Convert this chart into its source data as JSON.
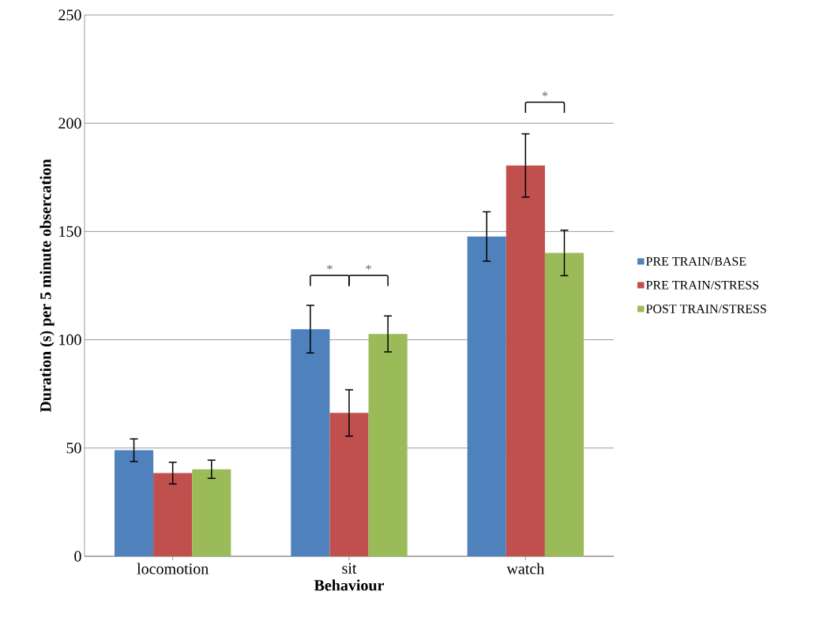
{
  "chart_data": {
    "type": "bar",
    "xlabel": "Behaviour",
    "ylabel": "Duration (s) per 5 minute obsercation",
    "categories": [
      "locomotion",
      "sit",
      "watch"
    ],
    "series": [
      {
        "name": "PRE TRAIN/BASE",
        "color": "#4f81bd",
        "values": [
          49.0,
          104.9,
          147.7
        ],
        "errors": [
          5.2,
          11,
          11.4
        ]
      },
      {
        "name": "PRE TRAIN/STRESS",
        "color": "#c0504d",
        "values": [
          38.4,
          66.2,
          180.5
        ],
        "errors": [
          5,
          10.7,
          14.6
        ]
      },
      {
        "name": "POST TRAIN/STRESS",
        "color": "#9bbb59",
        "values": [
          40.2,
          102.7,
          140.1
        ],
        "errors": [
          4.2,
          8.3,
          10.5
        ]
      }
    ],
    "ylim": [
      0,
      250
    ],
    "yticks": [
      0,
      50,
      100,
      150,
      200,
      250
    ],
    "grid": "y",
    "legend": "right",
    "annotations": [
      "*",
      "*",
      "*"
    ]
  }
}
